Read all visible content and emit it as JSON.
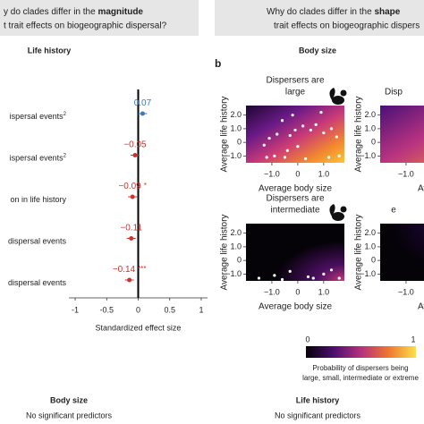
{
  "header_left": {
    "line1": "y do clades differ in the ",
    "line1_bold": "magnitude",
    "line2": "t trait effects on biogeographic dispersal?"
  },
  "header_right": {
    "line1": "Why do clades differ in the ",
    "line1_bold": "shape",
    "line2": "trait effects on biogeographic dispers"
  },
  "panel_a": {
    "title": "Life history",
    "x_label": "Standardized effect size",
    "xlim": [
      -1.1,
      1.1
    ],
    "xticks": [
      -1,
      -0.5,
      0,
      0.5,
      1
    ],
    "rows": [
      {
        "label": "ispersal events",
        "superscript": "2",
        "value": 0.07,
        "value_label": "0.07",
        "significance": "",
        "color": "#3a7bbf"
      },
      {
        "label": "ispersal events",
        "superscript": "2",
        "value": -0.05,
        "value_label": "−0.05",
        "significance": "",
        "color": "#d0322d"
      },
      {
        "label": "on in life history",
        "superscript": "",
        "value": -0.09,
        "value_label": "−0.09",
        "significance": "*",
        "color": "#d0322d"
      },
      {
        "label": "dispersal events",
        "superscript": "",
        "value": -0.11,
        "value_label": "−0.11",
        "significance": "",
        "color": "#d0322d"
      },
      {
        "label": "dispersal events",
        "superscript": "",
        "value": -0.14,
        "value_label": "−0.14",
        "significance": "***",
        "color": "#d0322d"
      }
    ]
  },
  "panel_b": {
    "label": "b",
    "title": "Body size",
    "panels": [
      {
        "title_lines": [
          "Dispersers are",
          "large"
        ],
        "x_label": "Average body size",
        "y_label": "Average life history",
        "xlim": [
          -2,
          1.8
        ],
        "ylim": [
          -1.5,
          2.7
        ],
        "xticks": [
          {
            "value": -1,
            "label": "−1.0"
          },
          0,
          {
            "value": 1,
            "label": "1.0"
          }
        ],
        "yticks": [
          {
            "value": -1,
            "label": "−1.0"
          },
          0,
          {
            "value": 1,
            "label": "1.0"
          },
          {
            "value": 2,
            "label": "2.0"
          }
        ],
        "points": {
          "x": [
            -1.2,
            -0.9,
            -0.5,
            0.3,
            1.2,
            1.6,
            -1.1,
            -0.8,
            -0.3,
            -0.1,
            0.2,
            0.5,
            0.7,
            1.0,
            1.3,
            -0.6,
            -0.2,
            0.9,
            -1.3,
            0.0,
            1.5,
            -0.4
          ],
          "y": [
            -1.1,
            -1.0,
            -1.1,
            -1.2,
            -1.1,
            -1.0,
            0.3,
            0.6,
            0.5,
            0.9,
            1.2,
            0.9,
            1.3,
            0.7,
            1.0,
            1.6,
            2.0,
            2.2,
            -0.2,
            -0.3,
            0.4,
            -0.6
          ]
        }
      },
      {
        "title_lines": [
          "Disp"
        ],
        "x_label": "Avera",
        "y_label": "Average life history",
        "xlim": [
          -2,
          1.8
        ],
        "ylim": [
          -1.5,
          2.7
        ],
        "xticks": [
          {
            "value": -1,
            "label": "−1.0"
          }
        ],
        "yticks": [
          {
            "value": -1,
            "label": "−1.0"
          },
          0,
          {
            "value": 1,
            "label": "1.0"
          },
          {
            "value": 2,
            "label": "2.0"
          }
        ],
        "points": {
          "x": [],
          "y": []
        }
      },
      {
        "title_lines": [
          "Dispersers are",
          "intermediate"
        ],
        "x_label": "Average body size",
        "y_label": "Average life history",
        "xlim": [
          -2,
          1.8
        ],
        "ylim": [
          -1.5,
          2.7
        ],
        "xticks": [
          {
            "value": -1,
            "label": "−1.0"
          },
          0,
          {
            "value": 1,
            "label": "1.0"
          }
        ],
        "yticks": [
          {
            "value": -1,
            "label": "−1.0"
          },
          0,
          {
            "value": 1,
            "label": "1.0"
          },
          {
            "value": 2,
            "label": "2.0"
          }
        ],
        "points": {
          "x": [
            -1.5,
            -0.9,
            -0.3,
            0.4,
            1.0,
            1.3,
            1.6,
            0.6,
            -0.6
          ],
          "y": [
            -1.3,
            -1.1,
            -0.8,
            -1.2,
            -1.0,
            -0.7,
            -1.3,
            -1.3,
            -1.4
          ]
        }
      },
      {
        "title_lines": [
          "",
          "e"
        ],
        "x_label": "Avera",
        "y_label": "Average life history",
        "xlim": [
          -2,
          1.8
        ],
        "ylim": [
          -1.5,
          2.7
        ],
        "xticks": [
          {
            "value": -1,
            "label": "−1.0"
          }
        ],
        "yticks": [
          {
            "value": -1,
            "label": "−1.0"
          },
          0,
          {
            "value": 1,
            "label": "1.0"
          },
          {
            "value": 2,
            "label": "2.0"
          }
        ],
        "points": {
          "x": [],
          "y": []
        }
      }
    ],
    "colorbar": {
      "min": 0,
      "max": 1,
      "caption_lines": [
        "Probability of dispersers being",
        "large, small, intermediate or extreme"
      ]
    }
  },
  "footer_left": {
    "title": "Body size",
    "text": "No significant predictors"
  },
  "footer_right": {
    "title": "Life history",
    "text": "No significant predictors"
  }
}
